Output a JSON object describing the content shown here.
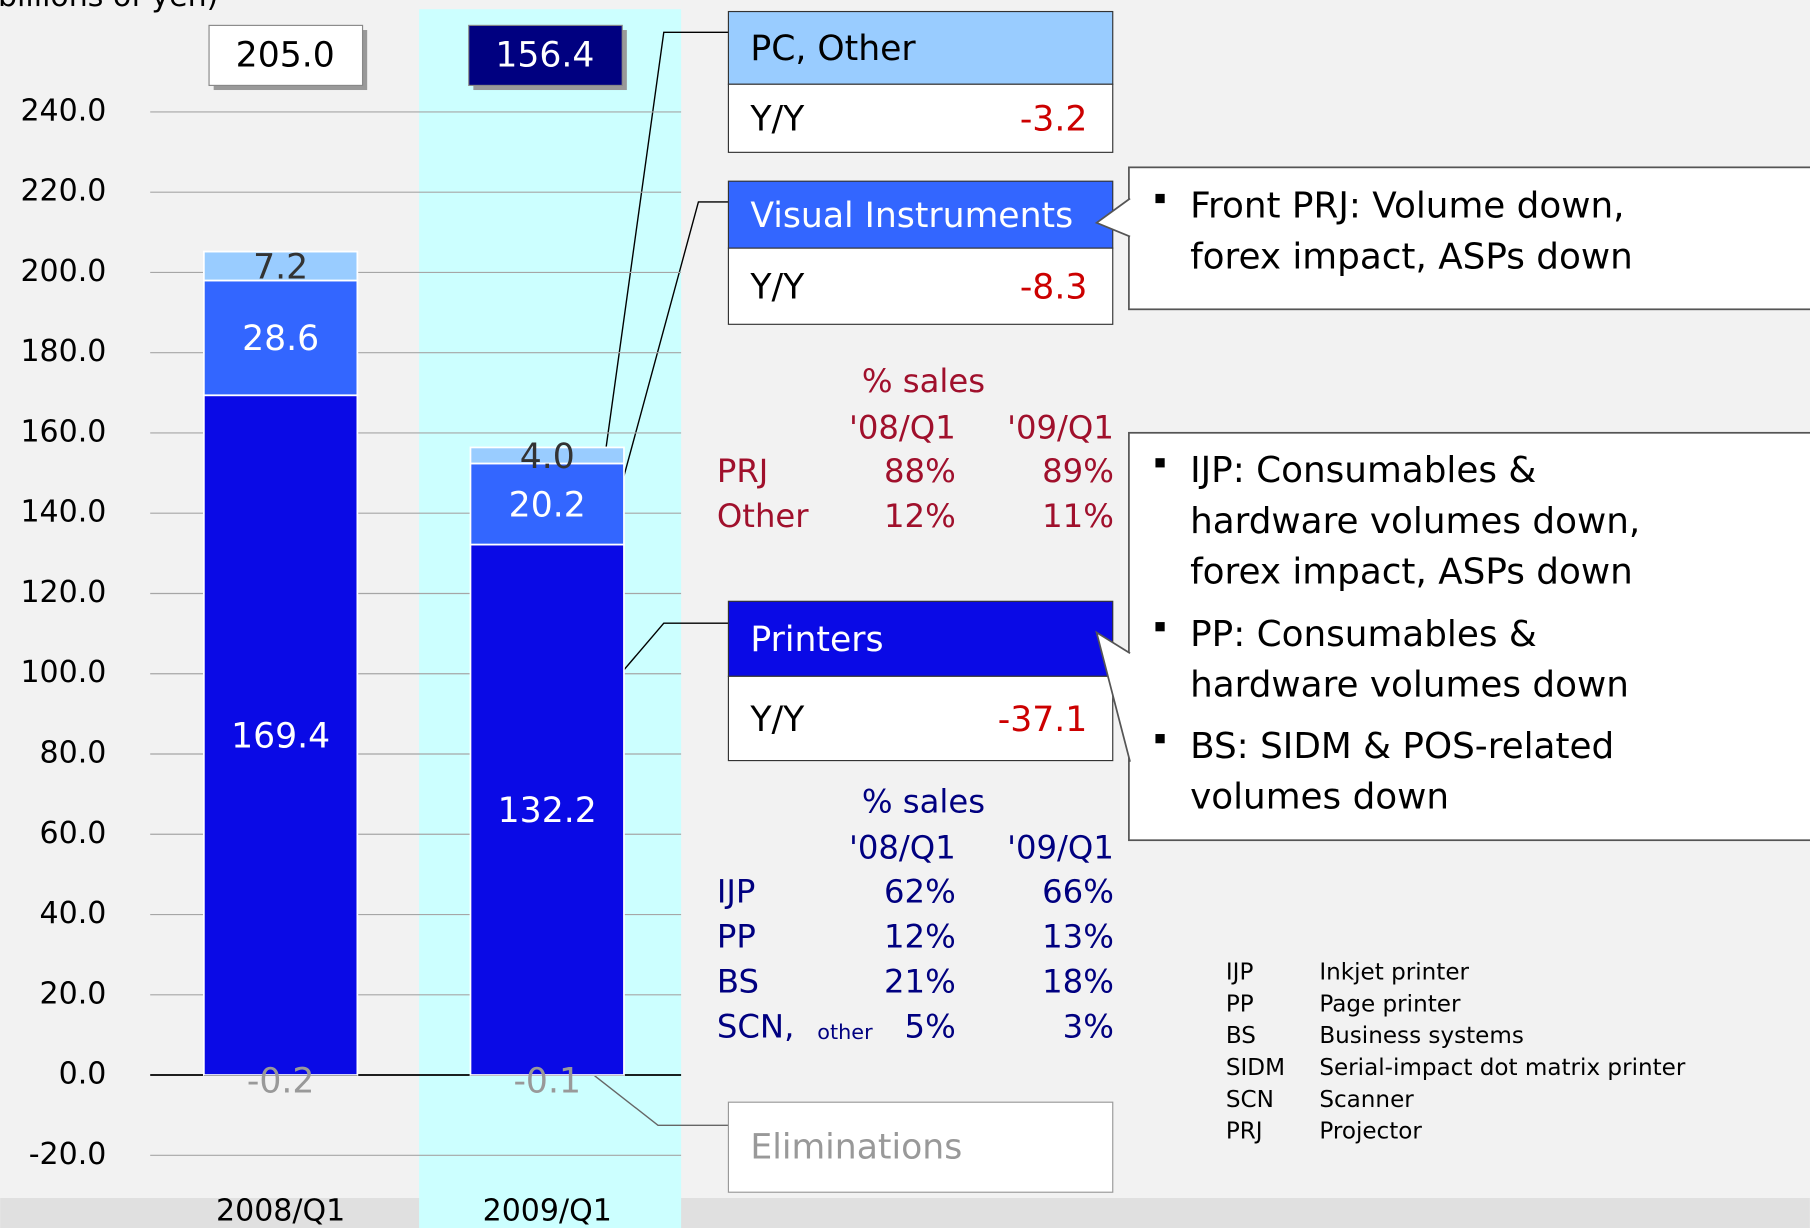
{
  "chart_data": {
    "type": "stacked_bar",
    "y_label": "(billions of yen)",
    "categories": [
      "2008/Q1",
      "2009/Q1"
    ],
    "series": [
      {
        "name": "Printers",
        "color": "#0a0ae6",
        "values": [
          169.4,
          132.2
        ],
        "value_labels": [
          "169.4",
          "132.2"
        ],
        "yy": -37.1
      },
      {
        "name": "Visual Instruments",
        "color": "#3366ff",
        "values": [
          28.6,
          20.2
        ],
        "value_labels": [
          "28.6",
          "20.2"
        ],
        "yy": -8.3
      },
      {
        "name": "PC, Other",
        "color": "#99ccff",
        "values": [
          7.2,
          4.0
        ],
        "value_labels": [
          "7.2",
          "4.0"
        ],
        "yy": -3.2
      },
      {
        "name": "Eliminations",
        "color": "#999999",
        "values": [
          -0.2,
          -0.1
        ],
        "value_labels": [
          "-0.2",
          "-0.1"
        ]
      }
    ],
    "yy_label": "Y/Y",
    "totals": [
      {
        "value": 205.0,
        "label": "205.0"
      },
      {
        "value": 156.4,
        "label": "156.4"
      }
    ],
    "ylim": [
      -20,
      240
    ],
    "yticks": [
      {
        "value": -20,
        "label": "-20.0"
      },
      {
        "value": 0,
        "label": "0.0"
      },
      {
        "value": 20,
        "label": "20.0"
      },
      {
        "value": 40,
        "label": "40.0"
      },
      {
        "value": 60,
        "label": "60.0"
      },
      {
        "value": 80,
        "label": "80.0"
      },
      {
        "value": 100,
        "label": "100.0"
      },
      {
        "value": 120,
        "label": "120.0"
      },
      {
        "value": 140,
        "label": "140.0"
      },
      {
        "value": 160,
        "label": "160.0"
      },
      {
        "value": 180,
        "label": "180.0"
      },
      {
        "value": 200,
        "label": "200.0"
      },
      {
        "value": 220,
        "label": "220.0"
      },
      {
        "value": 240,
        "label": "240.0"
      }
    ],
    "grid": true,
    "share_tables": [
      {
        "title": "% sales",
        "columns": [
          "'08/Q1",
          "'09/Q1"
        ],
        "color": "#a0102c",
        "rows": [
          {
            "name": "PRJ",
            "values": [
              "88%",
              "89%"
            ]
          },
          {
            "name": "Other",
            "values": [
              "12%",
              "11%"
            ]
          }
        ]
      },
      {
        "title": "% sales",
        "columns": [
          "'08/Q1",
          "'09/Q1"
        ],
        "color": "#000080",
        "rows": [
          {
            "name": "IJP",
            "values": [
              "62%",
              "66%"
            ]
          },
          {
            "name": "PP",
            "values": [
              "12%",
              "13%"
            ]
          },
          {
            "name": "BS",
            "values": [
              "21%",
              "18%"
            ]
          },
          {
            "name": "SCN,",
            "sub": "other",
            "values": [
              "5%",
              "3%"
            ]
          }
        ]
      }
    ],
    "notes": [
      {
        "items": [
          {
            "lines": [
              "Front PRJ: Volume down,",
              "forex impact, ASPs down"
            ]
          }
        ]
      },
      {
        "items": [
          {
            "lines": [
              "IJP: Consumables &",
              "hardware volumes down,",
              "forex impact, ASPs down"
            ]
          },
          {
            "lines": [
              "PP: Consumables &",
              "hardware volumes down"
            ]
          },
          {
            "lines": [
              "BS: SIDM & POS-related",
              "volumes down"
            ]
          }
        ]
      }
    ],
    "glossary": [
      [
        "IJP",
        "Inkjet printer"
      ],
      [
        "PP",
        "Page printer"
      ],
      [
        "BS",
        "Business systems"
      ],
      [
        "SIDM",
        "Serial-impact dot matrix printer"
      ],
      [
        "SCN",
        "Scanner"
      ],
      [
        "PRJ",
        "Projector"
      ]
    ]
  }
}
